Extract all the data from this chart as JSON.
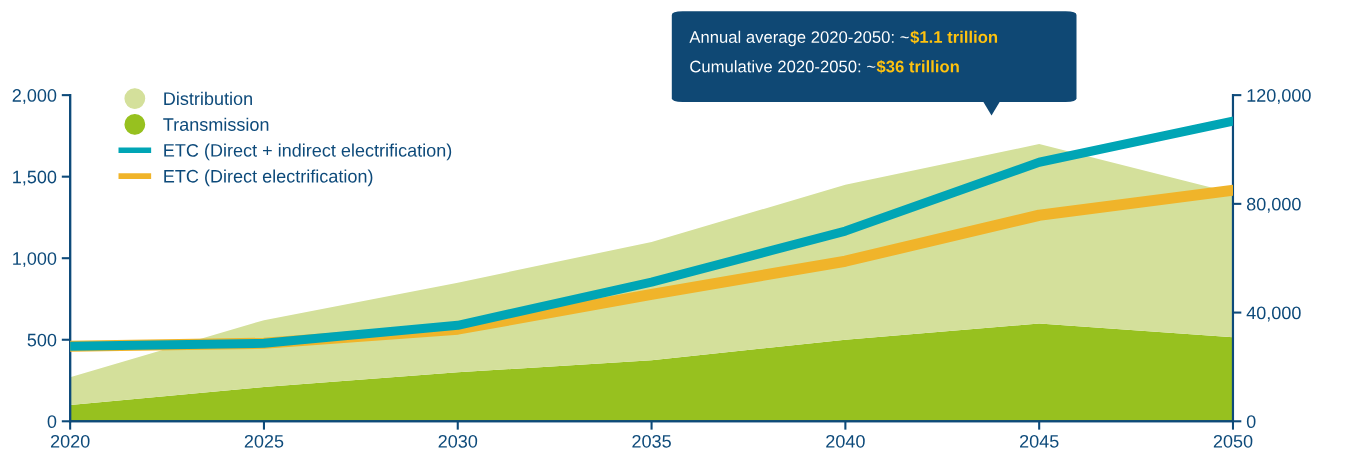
{
  "chart_data": {
    "type": "area",
    "stacked": true,
    "x": [
      2020,
      2025,
      2030,
      2035,
      2040,
      2045,
      2050
    ],
    "series": [
      {
        "name": "Transmission",
        "color": "#97c11f",
        "values": [
          100,
          210,
          300,
          375,
          500,
          600,
          515
        ]
      },
      {
        "name": "Distribution",
        "color": "#d4e09b",
        "values": [
          170,
          410,
          550,
          725,
          950,
          1100,
          885
        ]
      },
      {
        "name": "ETC (Direct + indirect electrification)",
        "type": "line",
        "axis": "y2",
        "color": "#00a5b5",
        "values": [
          27600,
          28700,
          35300,
          51200,
          70000,
          95300,
          110400
        ]
      },
      {
        "name": "ETC (Direct electrification)",
        "type": "line",
        "axis": "y2",
        "color": "#f0b42a",
        "values": [
          27600,
          28700,
          33900,
          46700,
          58900,
          75800,
          85000
        ]
      }
    ],
    "xlim": [
      2020,
      2050
    ],
    "xticks": [
      2020,
      2025,
      2030,
      2035,
      2040,
      2045,
      2050
    ],
    "ylim": [
      0,
      2000
    ],
    "yticks": [
      0,
      500,
      {
        "value": 1000,
        "label": "1,000"
      },
      {
        "value": 1500,
        "label": "1,500"
      },
      {
        "value": 2000,
        "label": "2,000"
      }
    ],
    "y2lim": [
      0,
      120000
    ],
    "y2ticks": [
      0,
      {
        "value": 40000,
        "label": "40,000"
      },
      {
        "value": 80000,
        "label": "80,000"
      },
      {
        "value": 120000,
        "label": "120,000"
      }
    ],
    "annotations": [
      "Annual average 2020-2050: ~$1.1 trillion",
      "Cumulative 2020-2050: ~$36 trillion"
    ],
    "legend": "top left",
    "grid": false,
    "marker": "none",
    "line_style": "solid"
  }
}
